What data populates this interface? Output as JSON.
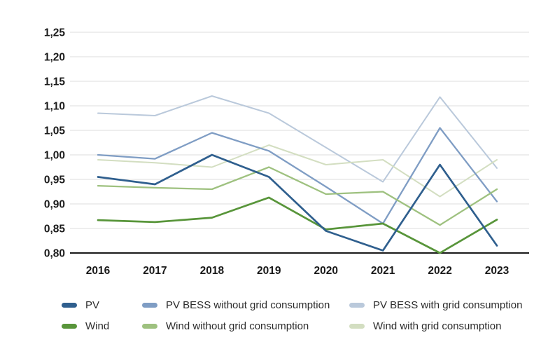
{
  "chart_data": {
    "type": "line",
    "title": "",
    "xlabel": "",
    "ylabel": "",
    "x": [
      "2016",
      "2017",
      "2018",
      "2019",
      "2020",
      "2021",
      "2022",
      "2023"
    ],
    "ylim": [
      0.8,
      1.25
    ],
    "ytick_step": 0.05,
    "ytick_labels": [
      "1,25",
      "1,20",
      "1,15",
      "1,10",
      "1,05",
      "1,00",
      "0,95",
      "0,90",
      "0,85",
      "0,80"
    ],
    "grid": true,
    "legend_position": "bottom",
    "colors": {
      "grid_line": "#dcdcdc",
      "axis_line": "#1a1a1a",
      "tick_text": "#1a1a1a",
      "legend_text": "#2b2b2b"
    },
    "series": [
      {
        "name": "PV",
        "color": "#2f5f8e",
        "stroke_width": 2.7,
        "values": [
          0.955,
          0.94,
          1.0,
          0.955,
          0.845,
          0.805,
          0.98,
          0.815
        ]
      },
      {
        "name": "PV BESS without grid consumption",
        "color": "#7f9dc4",
        "stroke_width": 2.3,
        "values": [
          1.0,
          0.992,
          1.045,
          1.008,
          0.935,
          0.86,
          1.055,
          0.905
        ]
      },
      {
        "name": "PV BESS with grid consumption",
        "color": "#bac9db",
        "stroke_width": 2.0,
        "values": [
          1.085,
          1.08,
          1.12,
          1.085,
          1.015,
          0.945,
          1.118,
          0.973
        ]
      },
      {
        "name": "Wind",
        "color": "#58953a",
        "stroke_width": 2.7,
        "values": [
          0.867,
          0.863,
          0.872,
          0.913,
          0.848,
          0.86,
          0.8,
          0.868
        ]
      },
      {
        "name": "Wind without grid consumption",
        "color": "#9ec17f",
        "stroke_width": 2.3,
        "values": [
          0.937,
          0.933,
          0.93,
          0.975,
          0.92,
          0.925,
          0.857,
          0.93
        ]
      },
      {
        "name": "Wind with grid consumption",
        "color": "#d3dec1",
        "stroke_width": 2.0,
        "values": [
          0.99,
          0.984,
          0.975,
          1.02,
          0.98,
          0.99,
          0.915,
          0.99
        ]
      }
    ]
  }
}
